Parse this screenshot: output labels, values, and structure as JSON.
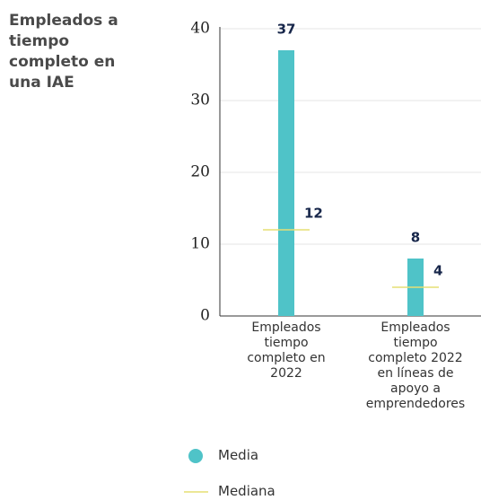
{
  "chart_data": {
    "type": "bar",
    "title": "Empleados a tiempo completo en una IAE",
    "categories": [
      "Empleados tiempo completo en 2022",
      "Empleados tiempo completo 2022 en líneas de apoyo a emprendedores"
    ],
    "series": [
      {
        "name": "Media",
        "color": "#4fc3c8",
        "values": [
          37,
          8
        ]
      },
      {
        "name": "Mediana",
        "color": "#e6df74",
        "values": [
          12,
          4
        ]
      }
    ],
    "ylim": [
      0,
      40
    ],
    "yticks": [
      0,
      10,
      20,
      30,
      40
    ],
    "grid": true
  }
}
